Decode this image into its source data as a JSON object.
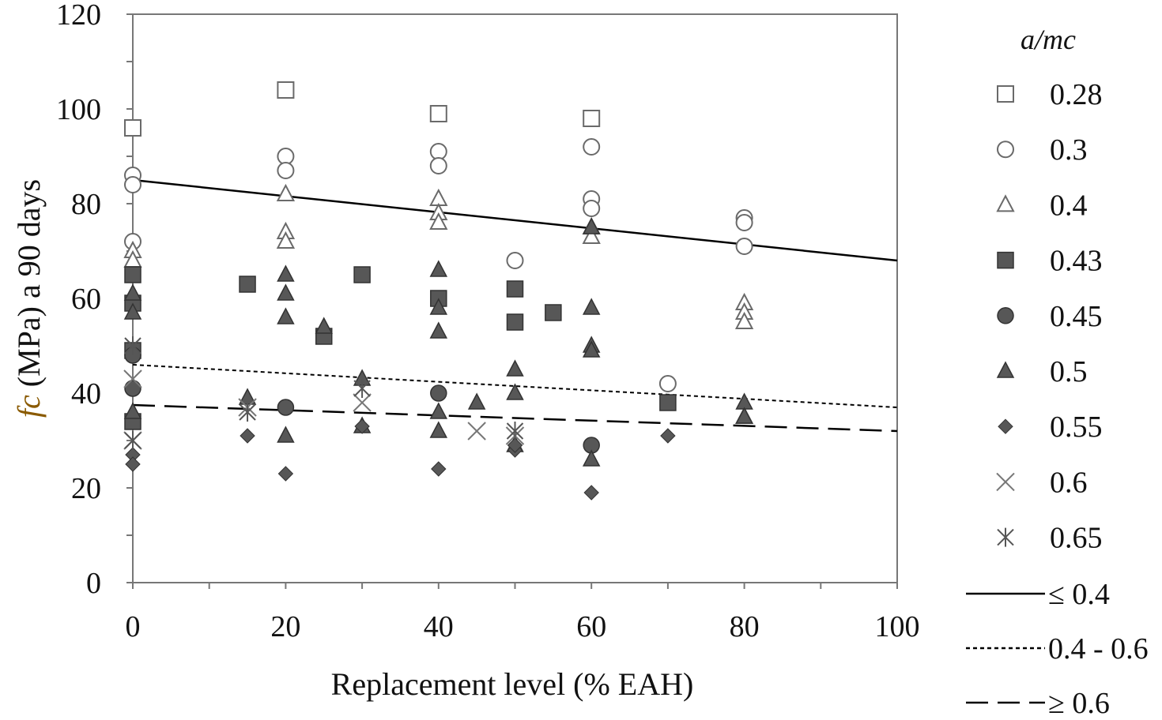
{
  "chart_data": {
    "type": "scatter",
    "title": "",
    "xlabel": "Replacement level (% EAH)",
    "ylabel_symbol": "fc",
    "ylabel_rest": " (MPa) a 90 days",
    "xlim": [
      0,
      100
    ],
    "ylim": [
      0,
      120
    ],
    "xticks": [
      0,
      20,
      40,
      60,
      80,
      100
    ],
    "yticks": [
      0,
      20,
      40,
      60,
      80,
      100,
      120
    ],
    "grid": false,
    "legend_title": "a/mc",
    "legend_placement": "right",
    "series": [
      {
        "name": "0.28",
        "marker": "square-open",
        "points": [
          [
            0,
            96
          ],
          [
            20,
            104
          ],
          [
            40,
            99
          ],
          [
            60,
            98
          ]
        ]
      },
      {
        "name": "0.3",
        "marker": "circle-open",
        "points": [
          [
            0,
            86
          ],
          [
            0,
            84
          ],
          [
            0,
            72
          ],
          [
            20,
            90
          ],
          [
            20,
            87
          ],
          [
            40,
            91
          ],
          [
            40,
            88
          ],
          [
            50,
            68
          ],
          [
            60,
            92
          ],
          [
            60,
            81
          ],
          [
            60,
            79
          ],
          [
            70,
            42
          ],
          [
            80,
            77
          ],
          [
            80,
            76
          ],
          [
            80,
            71
          ]
        ]
      },
      {
        "name": "0.4",
        "marker": "triangle-open",
        "points": [
          [
            0,
            70
          ],
          [
            0,
            68
          ],
          [
            20,
            82
          ],
          [
            20,
            74
          ],
          [
            20,
            72
          ],
          [
            40,
            81
          ],
          [
            40,
            78
          ],
          [
            40,
            76
          ],
          [
            60,
            75
          ],
          [
            60,
            73
          ],
          [
            80,
            59
          ],
          [
            80,
            57
          ],
          [
            80,
            55
          ],
          [
            80,
            35
          ]
        ]
      },
      {
        "name": "0.43",
        "marker": "square-filled",
        "points": [
          [
            0,
            65
          ],
          [
            0,
            59
          ],
          [
            0,
            49
          ],
          [
            0,
            34
          ],
          [
            15,
            63
          ],
          [
            25,
            52
          ],
          [
            30,
            65
          ],
          [
            40,
            60
          ],
          [
            50,
            62
          ],
          [
            50,
            55
          ],
          [
            55,
            57
          ],
          [
            70,
            38
          ]
        ]
      },
      {
        "name": "0.45",
        "marker": "circle-filled",
        "points": [
          [
            0,
            48
          ],
          [
            0,
            41
          ],
          [
            20,
            37
          ],
          [
            40,
            40
          ],
          [
            60,
            29
          ]
        ]
      },
      {
        "name": "0.5",
        "marker": "triangle-filled",
        "points": [
          [
            0,
            61
          ],
          [
            0,
            57
          ],
          [
            0,
            36
          ],
          [
            15,
            39
          ],
          [
            20,
            65
          ],
          [
            20,
            61
          ],
          [
            20,
            56
          ],
          [
            20,
            31
          ],
          [
            25,
            54
          ],
          [
            30,
            43
          ],
          [
            30,
            33
          ],
          [
            40,
            66
          ],
          [
            40,
            58
          ],
          [
            40,
            53
          ],
          [
            40,
            36
          ],
          [
            40,
            32
          ],
          [
            45,
            38
          ],
          [
            50,
            45
          ],
          [
            50,
            40
          ],
          [
            50,
            29
          ],
          [
            60,
            75
          ],
          [
            60,
            58
          ],
          [
            60,
            50
          ],
          [
            60,
            49
          ],
          [
            60,
            26
          ],
          [
            80,
            38
          ],
          [
            80,
            35
          ]
        ]
      },
      {
        "name": "0.55",
        "marker": "diamond-filled",
        "points": [
          [
            0,
            27
          ],
          [
            0,
            25
          ],
          [
            15,
            31
          ],
          [
            20,
            23
          ],
          [
            30,
            33
          ],
          [
            40,
            24
          ],
          [
            50,
            28
          ],
          [
            50,
            29
          ],
          [
            60,
            19
          ],
          [
            70,
            31
          ]
        ]
      },
      {
        "name": "0.6",
        "marker": "x",
        "points": [
          [
            0,
            43
          ],
          [
            0,
            30
          ],
          [
            15,
            37
          ],
          [
            30,
            38
          ],
          [
            45,
            32
          ],
          [
            50,
            31
          ]
        ]
      },
      {
        "name": "0.65",
        "marker": "asterisk",
        "points": [
          [
            0,
            50
          ],
          [
            0,
            30
          ],
          [
            15,
            36
          ],
          [
            30,
            41
          ],
          [
            50,
            32
          ]
        ]
      }
    ],
    "trendlines": [
      {
        "name": "≤ 0.4",
        "style": "solid",
        "x": [
          0,
          100
        ],
        "y": [
          85,
          68
        ]
      },
      {
        "name": "0.4 - 0.6",
        "style": "dotted",
        "x": [
          0,
          100
        ],
        "y": [
          46,
          37
        ]
      },
      {
        "name": "≥ 0.6",
        "style": "dashed",
        "x": [
          0,
          100
        ],
        "y": [
          37.5,
          32
        ]
      }
    ]
  }
}
